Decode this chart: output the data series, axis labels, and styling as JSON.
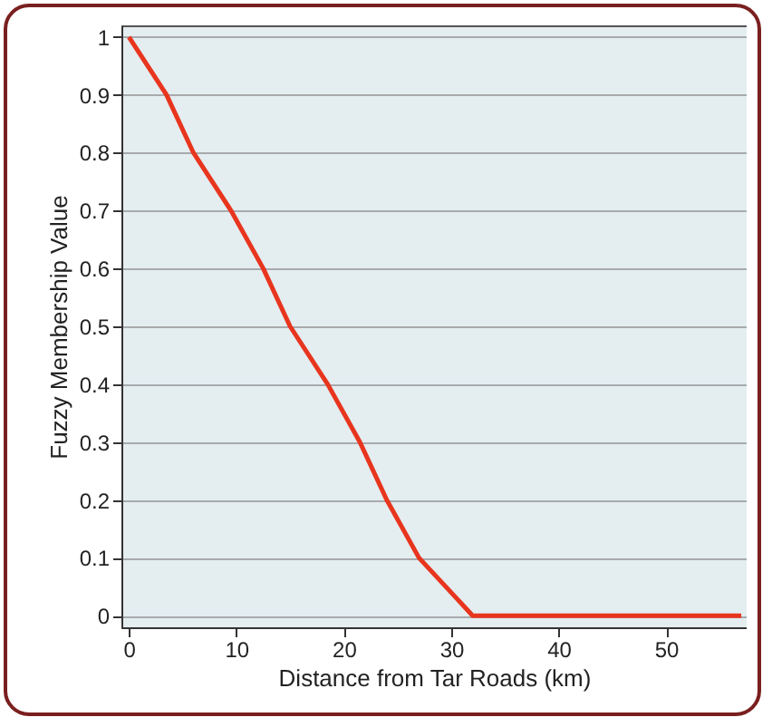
{
  "chart_data": {
    "type": "line",
    "xlabel": "Distance from Tar Roads (km)",
    "ylabel": "Fuzzy Membership Value",
    "x": [
      0,
      3.5,
      6,
      9.5,
      12.5,
      15,
      18.5,
      21.5,
      24,
      27,
      32,
      57
    ],
    "series": [
      {
        "color": "#e8351e",
        "values": [
          1,
          0.9,
          0.8,
          0.7,
          0.6,
          0.5,
          0.4,
          0.3,
          0.2,
          0.1,
          0,
          0
        ]
      }
    ],
    "xlim": [
      -0.7,
      57.5
    ],
    "xticks": [
      0,
      10,
      20,
      30,
      40,
      50
    ],
    "ylim": [
      -0.02,
      1.02
    ],
    "yticks": [
      0,
      0.1,
      0.2,
      0.3,
      0.4,
      0.5,
      0.6,
      0.7,
      0.8,
      0.9,
      1
    ],
    "grid": "y",
    "marker": "none",
    "line_style": "solid"
  }
}
